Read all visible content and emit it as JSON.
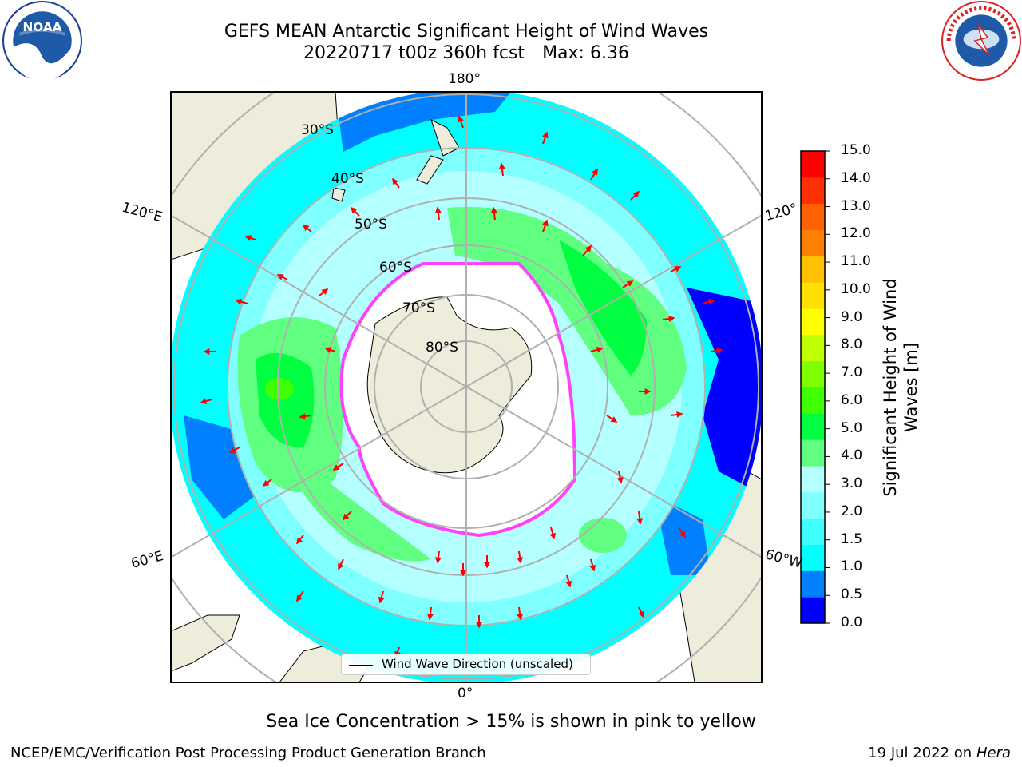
{
  "title": {
    "line1": "GEFS MEAN Antarctic Significant Height of Wind Waves",
    "line2_run": "20220717 t00z 360h fcst",
    "line2_max": "Max: 6.36"
  },
  "logos": {
    "left": {
      "icon": "noaa-logo",
      "text": "NOAA"
    },
    "right": {
      "icon": "nws-logo",
      "text": "NATIONAL WEATHER SERVICE"
    }
  },
  "map": {
    "projection": "south-polar-stereographic",
    "longitude_labels": {
      "top": "180°",
      "upper_left": "120°E",
      "upper_right": "120°",
      "lower_left": "60°E",
      "lower_right": "60°W",
      "bottom": "0°"
    },
    "latitude_labels": [
      "30°S",
      "40°S",
      "50°S",
      "60°S",
      "70°S",
      "80°S"
    ],
    "legend": "Wind Wave Direction (unscaled)",
    "colors": {
      "land": "#eeecda",
      "ice": "#ffffff",
      "grid": "#b0b0b0",
      "arrow": "#ff0000",
      "ice_edge": "#ff40ff"
    }
  },
  "colorbar": {
    "label": "Significant Height of Wind Waves [m]",
    "label_line1": "Significant Height of Wind",
    "label_line2": "Waves [m]",
    "ticks": [
      "0.0",
      "0.5",
      "1.0",
      "1.5",
      "2.0",
      "3.0",
      "4.0",
      "5.0",
      "6.0",
      "7.0",
      "8.0",
      "9.0",
      "10.0",
      "11.0",
      "12.0",
      "13.0",
      "14.0",
      "15.0"
    ],
    "colors": [
      "#0000ff",
      "#0080ff",
      "#00ffff",
      "#40ffff",
      "#80ffff",
      "#b4ffff",
      "#60ff80",
      "#00ff40",
      "#40ff00",
      "#80ff00",
      "#c0ff00",
      "#ffff00",
      "#ffe000",
      "#ffc000",
      "#ff8000",
      "#ff6000",
      "#ff3000",
      "#ff0000"
    ]
  },
  "subtitle": "Sea Ice Concentration > 15% is shown in pink to yellow",
  "footer": {
    "left": "NCEP/EMC/Verification Post Processing Product Generation Branch",
    "right_date": "19 Jul 2022 on",
    "right_host": "Hera"
  }
}
